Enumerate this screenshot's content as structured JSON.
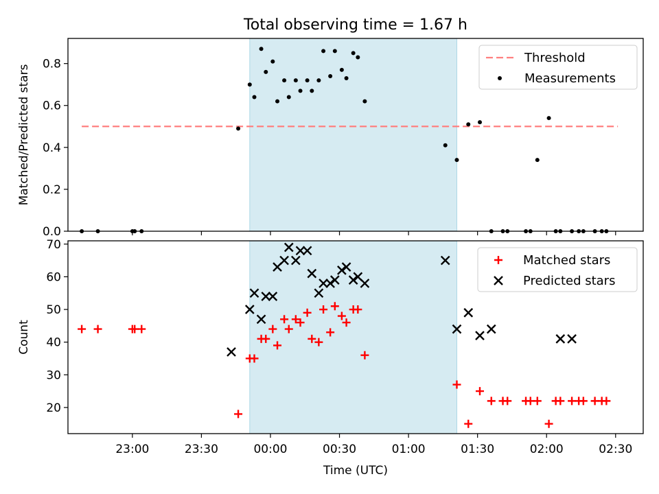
{
  "figure": {
    "title": "Total observing time = 1.67 h"
  },
  "chart_data": [
    {
      "type": "scatter",
      "panel": "top",
      "ylabel": "Matched/Predicted stars",
      "xlabel": "",
      "xlim": [
        "22:32",
        "02:42"
      ],
      "ylim": [
        0,
        0.92
      ],
      "yticks": [
        0.0,
        0.2,
        0.4,
        0.6,
        0.8
      ],
      "ytick_labels": [
        "0.0",
        "0.2",
        "0.4",
        "0.6",
        "0.8"
      ],
      "xticks": [
        "23:00",
        "23:30",
        "00:00",
        "00:30",
        "01:00",
        "01:30",
        "02:00",
        "02:30"
      ],
      "xticks_labeled": false,
      "shaded_region": {
        "x": [
          "23:51",
          "01:21"
        ],
        "color": "#add8e6"
      },
      "grid": false,
      "legend": {
        "position": "top-right"
      },
      "series": [
        {
          "name": "Threshold",
          "kind": "line",
          "style": "dashed",
          "color": "#ff7f7f",
          "x": [
            "22:38",
            "02:31"
          ],
          "y": [
            0.5,
            0.5
          ]
        },
        {
          "name": "Measurements",
          "kind": "scatter",
          "marker": "dot",
          "color": "#000000",
          "x": [
            "22:38",
            "22:45",
            "23:00",
            "23:01",
            "23:04",
            "23:46",
            "23:51",
            "23:53",
            "23:56",
            "23:58",
            "00:01",
            "00:03",
            "00:06",
            "00:08",
            "00:11",
            "00:13",
            "00:16",
            "00:18",
            "00:21",
            "00:23",
            "00:26",
            "00:28",
            "00:31",
            "00:33",
            "00:36",
            "00:38",
            "00:41",
            "01:16",
            "01:21",
            "01:26",
            "01:31",
            "01:36",
            "01:41",
            "01:43",
            "01:51",
            "01:53",
            "01:56",
            "02:01",
            "02:04",
            "02:06",
            "02:11",
            "02:14",
            "02:16",
            "02:21",
            "02:24",
            "02:26"
          ],
          "y": [
            0,
            0,
            0,
            0,
            0,
            0.49,
            0.7,
            0.64,
            0.87,
            0.76,
            0.81,
            0.62,
            0.72,
            0.64,
            0.72,
            0.67,
            0.72,
            0.67,
            0.72,
            0.86,
            0.74,
            0.86,
            0.77,
            0.73,
            0.85,
            0.83,
            0.62,
            0.41,
            0.34,
            0.51,
            0.52,
            0,
            0,
            0,
            0,
            0,
            0.34,
            0.54,
            0,
            0,
            0,
            0,
            0,
            0,
            0,
            0
          ]
        }
      ]
    },
    {
      "type": "scatter",
      "panel": "bottom",
      "ylabel": "Count",
      "xlabel": "Time (UTC)",
      "xlim": [
        "22:32",
        "02:42"
      ],
      "ylim": [
        12,
        71
      ],
      "yticks": [
        20,
        30,
        40,
        50,
        60,
        70
      ],
      "ytick_labels": [
        "20",
        "30",
        "40",
        "50",
        "60",
        "70"
      ],
      "xticks": [
        "23:00",
        "23:30",
        "00:00",
        "00:30",
        "01:00",
        "01:30",
        "02:00",
        "02:30"
      ],
      "xtick_labels": [
        "23:00",
        "23:30",
        "00:00",
        "00:30",
        "01:00",
        "01:30",
        "02:00",
        "02:30"
      ],
      "xticks_labeled": true,
      "shaded_region": {
        "x": [
          "23:51",
          "01:21"
        ],
        "color": "#add8e6"
      },
      "grid": false,
      "legend": {
        "position": "top-right"
      },
      "series": [
        {
          "name": "Matched stars",
          "kind": "scatter",
          "marker": "plus",
          "color": "#ff0000",
          "x": [
            "22:38",
            "22:45",
            "23:00",
            "23:01",
            "23:04",
            "23:46",
            "23:51",
            "23:53",
            "23:56",
            "23:58",
            "00:01",
            "00:03",
            "00:06",
            "00:08",
            "00:11",
            "00:13",
            "00:16",
            "00:18",
            "00:21",
            "00:23",
            "00:26",
            "00:28",
            "00:31",
            "00:33",
            "00:36",
            "00:38",
            "00:41",
            "01:21",
            "01:26",
            "01:31",
            "01:36",
            "01:41",
            "01:43",
            "01:51",
            "01:53",
            "01:56",
            "02:01",
            "02:04",
            "02:06",
            "02:11",
            "02:14",
            "02:16",
            "02:21",
            "02:24",
            "02:26"
          ],
          "y": [
            44,
            44,
            44,
            44,
            44,
            18,
            35,
            35,
            41,
            41,
            44,
            39,
            47,
            44,
            47,
            46,
            49,
            41,
            40,
            50,
            43,
            51,
            48,
            46,
            50,
            50,
            36,
            27,
            15,
            25,
            22,
            22,
            22,
            22,
            22,
            22,
            15,
            22,
            22,
            22,
            22,
            22,
            22,
            22,
            22
          ]
        },
        {
          "name": "Predicted stars",
          "kind": "scatter",
          "marker": "x",
          "color": "#000000",
          "x": [
            "23:43",
            "23:51",
            "23:53",
            "23:56",
            "23:58",
            "00:01",
            "00:03",
            "00:06",
            "00:08",
            "00:11",
            "00:13",
            "00:16",
            "00:18",
            "00:21",
            "00:23",
            "00:26",
            "00:28",
            "00:31",
            "00:33",
            "00:36",
            "00:38",
            "00:41",
            "01:16",
            "01:21",
            "01:26",
            "01:31",
            "01:36",
            "02:06",
            "02:11"
          ],
          "y": [
            37,
            50,
            55,
            47,
            54,
            54,
            63,
            65,
            69,
            65,
            68,
            68,
            61,
            55,
            58,
            58,
            59,
            62,
            63,
            59,
            60,
            58,
            65,
            44,
            49,
            42,
            44,
            41,
            41
          ]
        }
      ]
    }
  ]
}
